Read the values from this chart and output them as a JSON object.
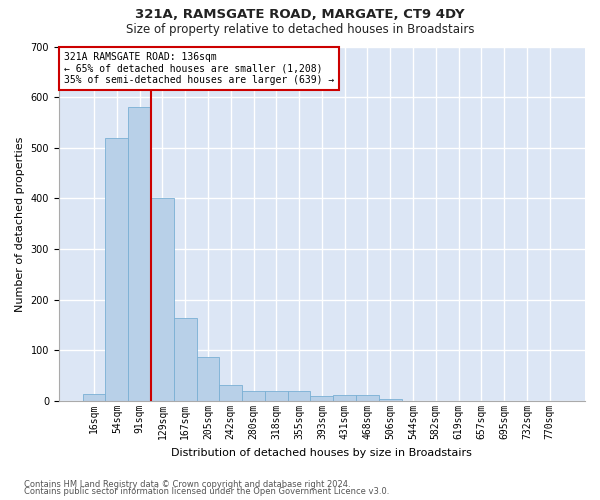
{
  "title1": "321A, RAMSGATE ROAD, MARGATE, CT9 4DY",
  "title2": "Size of property relative to detached houses in Broadstairs",
  "xlabel": "Distribution of detached houses by size in Broadstairs",
  "ylabel": "Number of detached properties",
  "bar_labels": [
    "16sqm",
    "54sqm",
    "91sqm",
    "129sqm",
    "167sqm",
    "205sqm",
    "242sqm",
    "280sqm",
    "318sqm",
    "355sqm",
    "393sqm",
    "431sqm",
    "468sqm",
    "506sqm",
    "544sqm",
    "582sqm",
    "619sqm",
    "657sqm",
    "695sqm",
    "732sqm",
    "770sqm"
  ],
  "bar_heights": [
    15,
    520,
    580,
    400,
    165,
    88,
    32,
    20,
    20,
    20,
    10,
    12,
    12,
    5,
    0,
    0,
    0,
    0,
    0,
    0,
    0
  ],
  "bar_color": "#b8d0e8",
  "bar_edge_color": "#7aafd4",
  "fig_background_color": "#ffffff",
  "axes_background_color": "#dce6f5",
  "grid_color": "#ffffff",
  "annotation_text_line1": "321A RAMSGATE ROAD: 136sqm",
  "annotation_text_line2": "← 65% of detached houses are smaller (1,208)",
  "annotation_text_line3": "35% of semi-detached houses are larger (639) →",
  "annotation_box_facecolor": "#ffffff",
  "annotation_box_edgecolor": "#cc0000",
  "red_line_color": "#cc0000",
  "red_line_x": 2.5,
  "footer1": "Contains HM Land Registry data © Crown copyright and database right 2024.",
  "footer2": "Contains public sector information licensed under the Open Government Licence v3.0.",
  "ylim": [
    0,
    700
  ],
  "yticks": [
    0,
    100,
    200,
    300,
    400,
    500,
    600,
    700
  ],
  "title1_fontsize": 9.5,
  "title2_fontsize": 8.5,
  "ylabel_fontsize": 8,
  "xlabel_fontsize": 8,
  "tick_fontsize": 7,
  "ann_fontsize": 7,
  "footer_fontsize": 6
}
